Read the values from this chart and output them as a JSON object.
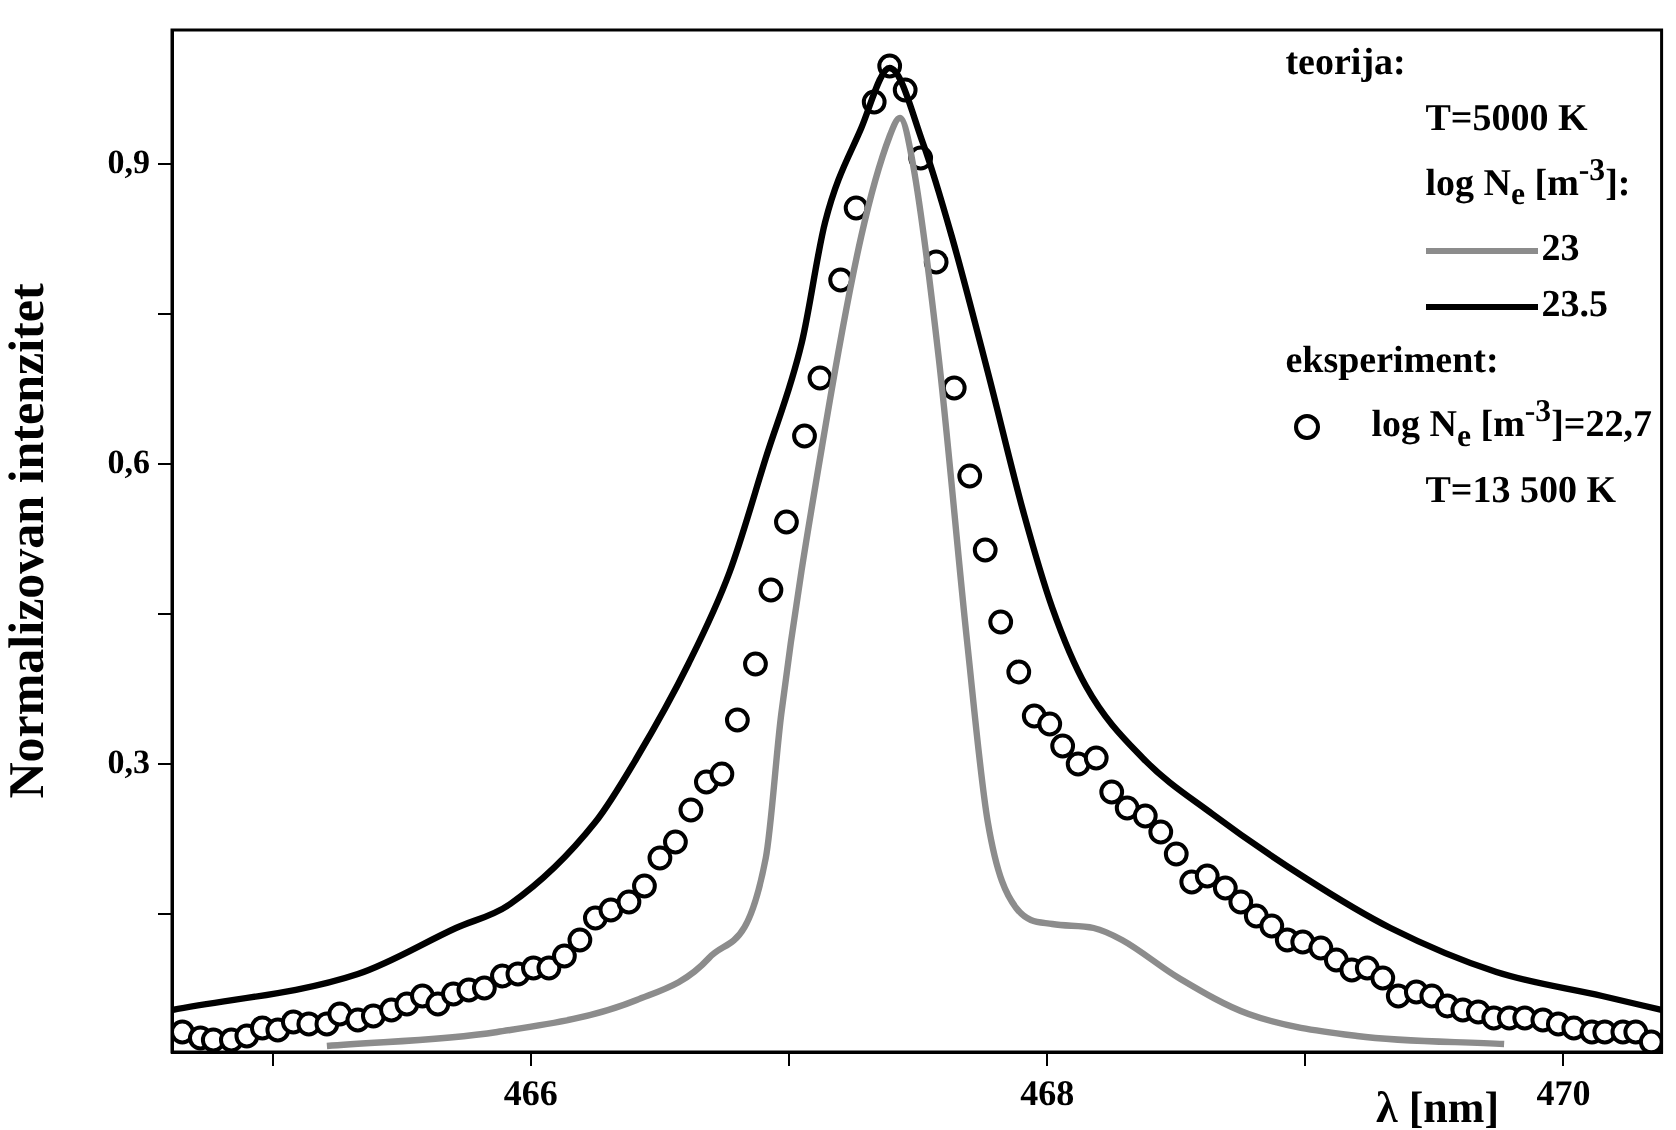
{
  "chart_data": {
    "type": "line",
    "xlabel": "λ [nm]",
    "ylabel": "Normalizovan intenzitet",
    "xlim": [
      464.61,
      470.38
    ],
    "ylim": [
      0.012,
      1.034
    ],
    "xticks": [
      {
        "value": 465,
        "label": null
      },
      466,
      {
        "value": 467,
        "label": null
      },
      468,
      {
        "value": 469,
        "label": null
      },
      470
    ],
    "yticks": [
      {
        "value": 0.15,
        "label": null
      },
      {
        "value": 0.3,
        "label": "0,3"
      },
      {
        "value": 0.45,
        "label": null
      },
      {
        "value": 0.6,
        "label": "0,6"
      },
      {
        "value": 0.75,
        "label": null
      },
      {
        "value": 0.9,
        "label": "0,9"
      }
    ],
    "grid": false,
    "legend": "top right",
    "line_style": "solid",
    "annotations": [
      "teorija:",
      "T=5000 K",
      "log N$_{e}$ [m$^{-3}$]:",
      "eksperiment:",
      "T=13 500 K"
    ],
    "series": [
      {
        "name": "23",
        "type": "line",
        "marker": "none",
        "color": "#8c8c8c",
        "x": [
          465.21,
          465.87,
          466.41,
          466.69,
          466.91,
          466.97,
          467.14,
          467.28,
          467.39,
          467.43,
          467.48,
          467.58,
          467.69,
          467.77,
          467.88,
          468.02,
          468.18,
          468.29,
          468.51,
          468.78,
          469.2,
          469.77
        ],
        "values": [
          0.018,
          0.032,
          0.064,
          0.106,
          0.206,
          0.35,
          0.636,
          0.828,
          0.928,
          0.946,
          0.9,
          0.706,
          0.422,
          0.242,
          0.156,
          0.14,
          0.136,
          0.124,
          0.086,
          0.05,
          0.028,
          0.02
        ]
      },
      {
        "name": "23.5",
        "type": "line",
        "marker": "none",
        "color": "#000000",
        "x": [
          464.61,
          465.33,
          465.71,
          465.92,
          466.25,
          466.41,
          466.61,
          466.77,
          466.91,
          467.05,
          467.14,
          467.28,
          467.39,
          467.52,
          467.63,
          467.77,
          467.91,
          468.02,
          468.15,
          468.37,
          468.64,
          469.0,
          469.33,
          469.74,
          470.15,
          470.38
        ],
        "values": [
          0.054,
          0.09,
          0.136,
          0.16,
          0.242,
          0.306,
          0.4,
          0.492,
          0.606,
          0.722,
          0.842,
          0.936,
          0.996,
          0.92,
          0.828,
          0.692,
          0.55,
          0.456,
          0.378,
          0.306,
          0.25,
          0.186,
          0.136,
          0.092,
          0.068,
          0.054
        ]
      },
      {
        "name": "log N$_{e}$ [m$^{-3}$]=22,7",
        "type": "scatter",
        "marker": "circle",
        "color": "#000000",
        "x": [
          464.65,
          464.72,
          464.77,
          464.84,
          464.9,
          464.96,
          465.02,
          465.08,
          465.14,
          465.21,
          465.26,
          465.33,
          465.39,
          465.46,
          465.52,
          465.58,
          465.64,
          465.7,
          465.76,
          465.82,
          465.89,
          465.95,
          466.01,
          466.07,
          466.13,
          466.19,
          466.25,
          466.31,
          466.38,
          466.44,
          466.5,
          466.56,
          466.62,
          466.68,
          466.74,
          466.8,
          466.87,
          466.93,
          466.99,
          467.06,
          467.12,
          467.2,
          467.26,
          467.33,
          467.39,
          467.45,
          467.51,
          467.57,
          467.64,
          467.7,
          467.76,
          467.82,
          467.89,
          467.95,
          468.01,
          468.06,
          468.12,
          468.19,
          468.25,
          468.31,
          468.38,
          468.44,
          468.5,
          468.56,
          468.62,
          468.69,
          468.75,
          468.81,
          468.87,
          468.93,
          468.99,
          469.06,
          469.12,
          469.18,
          469.24,
          469.3,
          469.36,
          469.43,
          469.49,
          469.55,
          469.61,
          469.67,
          469.73,
          469.79,
          469.85,
          469.92,
          469.98,
          470.04,
          470.11,
          470.16,
          470.23,
          470.28,
          470.34
        ],
        "values": [
          0.032,
          0.026,
          0.024,
          0.024,
          0.028,
          0.036,
          0.034,
          0.042,
          0.04,
          0.04,
          0.05,
          0.044,
          0.048,
          0.054,
          0.06,
          0.068,
          0.06,
          0.07,
          0.074,
          0.076,
          0.088,
          0.09,
          0.096,
          0.096,
          0.108,
          0.124,
          0.146,
          0.154,
          0.162,
          0.178,
          0.206,
          0.222,
          0.254,
          0.282,
          0.29,
          0.344,
          0.4,
          0.474,
          0.542,
          0.628,
          0.686,
          0.784,
          0.856,
          0.962,
          0.998,
          0.974,
          0.906,
          0.802,
          0.676,
          0.588,
          0.514,
          0.442,
          0.392,
          0.348,
          0.34,
          0.318,
          0.3,
          0.306,
          0.272,
          0.256,
          0.248,
          0.232,
          0.21,
          0.182,
          0.188,
          0.176,
          0.162,
          0.148,
          0.138,
          0.124,
          0.122,
          0.116,
          0.104,
          0.094,
          0.096,
          0.086,
          0.068,
          0.072,
          0.068,
          0.058,
          0.054,
          0.052,
          0.046,
          0.046,
          0.046,
          0.044,
          0.04,
          0.036,
          0.032,
          0.032,
          0.032,
          0.032,
          0.022
        ]
      }
    ]
  }
}
